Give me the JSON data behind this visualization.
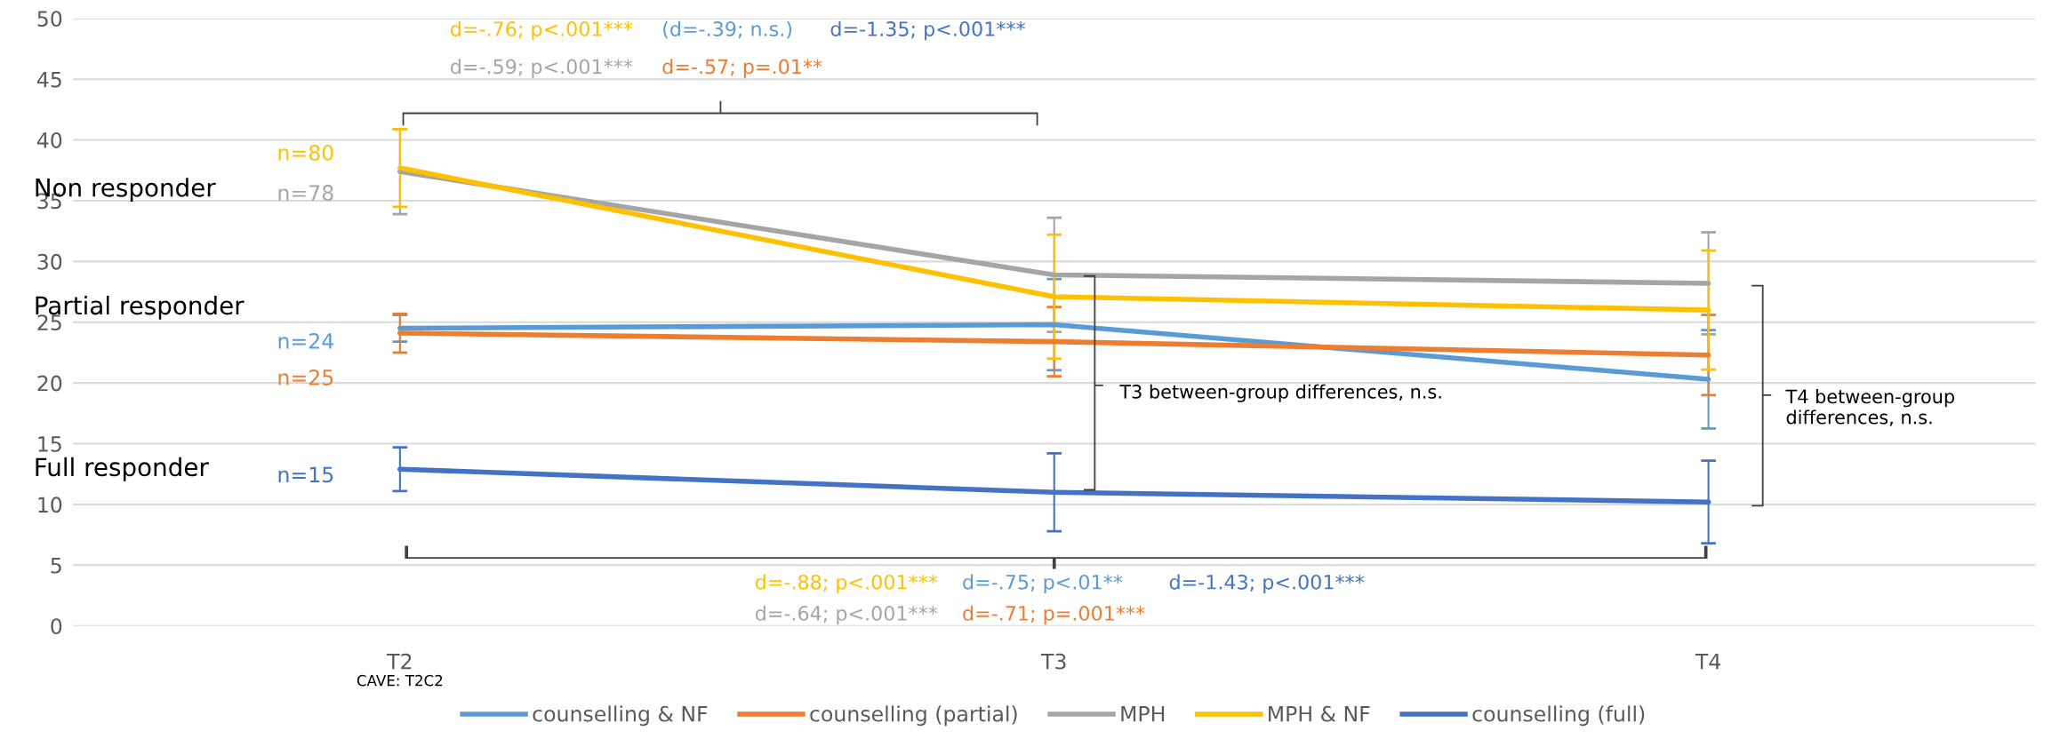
{
  "chart_data": {
    "type": "line",
    "categories": [
      "T2",
      "T3",
      "T4"
    ],
    "series": [
      {
        "name": "counselling & NF",
        "color": "#5b9bd5",
        "values": [
          24.5,
          24.8,
          20.3
        ],
        "errors": [
          1.1,
          3.75,
          4.05
        ]
      },
      {
        "name": "counselling (partial)",
        "color": "#ed7d31",
        "values": [
          24.1,
          23.4,
          22.3
        ],
        "errors": [
          1.6,
          2.85,
          3.3
        ]
      },
      {
        "name": "MPH",
        "color": "#a5a5a5",
        "values": [
          37.4,
          28.9,
          28.2
        ],
        "errors": [
          3.5,
          4.7,
          4.2
        ]
      },
      {
        "name": "MPH & NF",
        "color": "#ffc000",
        "values": [
          37.7,
          27.1,
          26.0
        ],
        "errors": [
          3.2,
          5.1,
          4.9
        ]
      },
      {
        "name": "counselling (full)",
        "color": "#4472c4",
        "values": [
          12.9,
          11.0,
          10.2
        ],
        "errors": [
          1.8,
          3.2,
          3.4
        ]
      }
    ],
    "ylim": [
      0,
      50
    ],
    "yticks": [
      0,
      5,
      10,
      15,
      20,
      25,
      30,
      35,
      40,
      45,
      50
    ],
    "grid": "y",
    "legend": "bottom",
    "marker": "none",
    "line_style": "solid",
    "annotations": [
      "Non responder",
      "Partial responder",
      "Full responder",
      "n=80",
      "n=78",
      "n=24",
      "n=25",
      "n=15",
      "d=-.76; p<.001***",
      "d=-.59; p<.001***",
      "(d=-.39; n.s.)",
      "d=-.57; p=.01**",
      "d=-1.35; p<.001***",
      "d=-.88; p<.001***",
      "d=-.64; p<.001***",
      "d=-.75; p<.01**",
      "d=-.71; p=.001***",
      "d=-1.43; p<.001***",
      "T3 between-group differences, n.s.",
      "T4 between-group\ndifferences, n.s.",
      "CAVE: T2C2"
    ]
  }
}
